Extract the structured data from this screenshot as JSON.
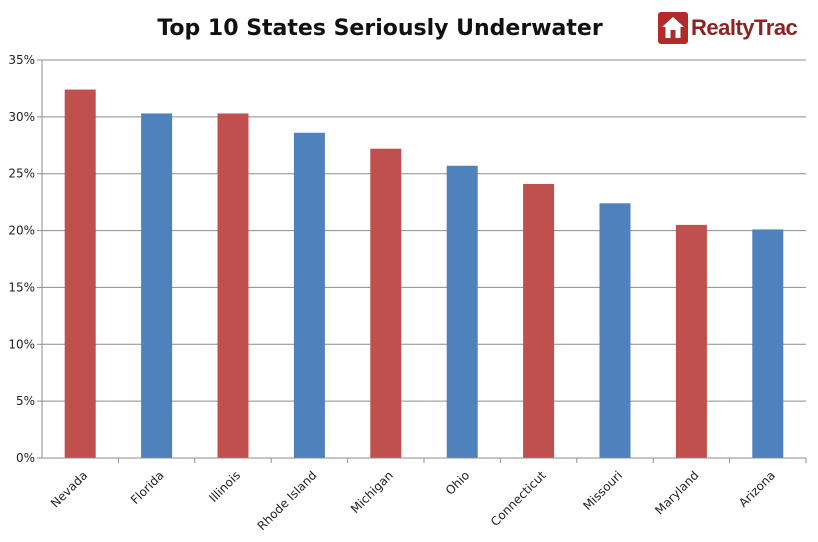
{
  "brand": {
    "name": "RealtyTrac"
  },
  "chart_data": {
    "type": "bar",
    "title": "Top 10 States Seriously Underwater",
    "xlabel": "",
    "ylabel": "",
    "categories": [
      "Nevada",
      "Florida",
      "Illinois",
      "Rhode Island",
      "Michigan",
      "Ohio",
      "Connecticut",
      "Missouri",
      "Maryland",
      "Arizona"
    ],
    "values": [
      32.4,
      30.3,
      30.3,
      28.6,
      27.2,
      25.7,
      24.1,
      22.4,
      20.5,
      20.1
    ],
    "bar_colors": [
      "#c0504d",
      "#4f81bd",
      "#c0504d",
      "#4f81bd",
      "#c0504d",
      "#4f81bd",
      "#c0504d",
      "#4f81bd",
      "#c0504d",
      "#4f81bd"
    ],
    "ylim": [
      0,
      35
    ],
    "yticks": [
      0,
      5,
      10,
      15,
      20,
      25,
      30,
      35
    ],
    "ytick_labels": [
      "0%",
      "5%",
      "10%",
      "15%",
      "20%",
      "25%",
      "30%",
      "35%"
    ],
    "grid": true,
    "legend": "none"
  }
}
